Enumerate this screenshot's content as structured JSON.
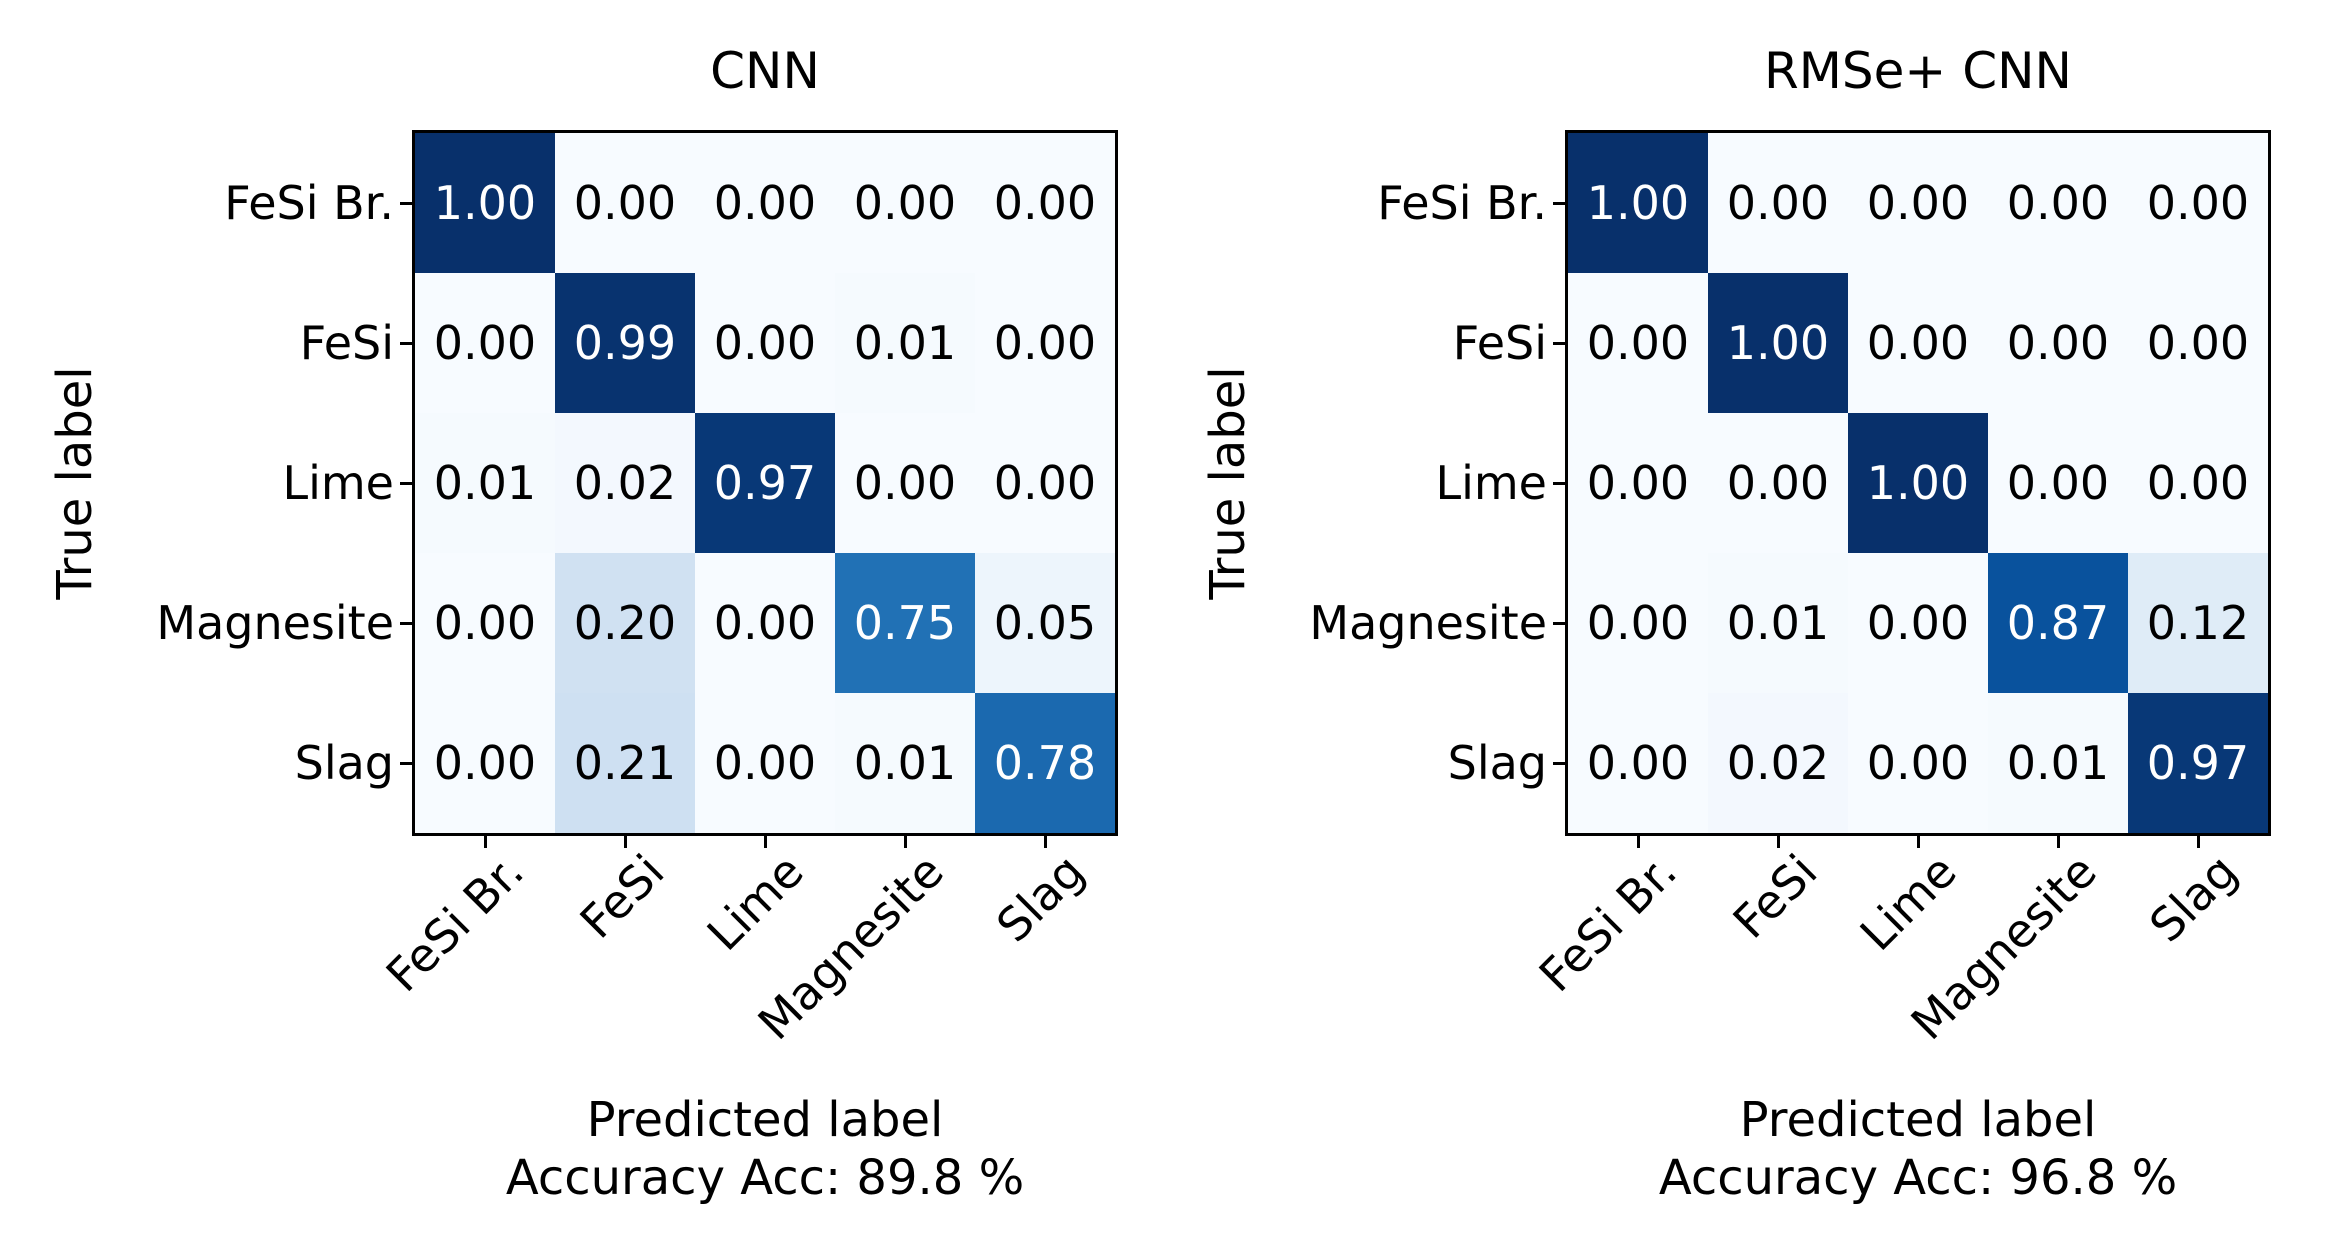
{
  "figure": {
    "background": "#ffffff",
    "text_color": "#000000",
    "cell_text_light": "#ffffff",
    "cell_text_dark": "#000000"
  },
  "colormap": {
    "name": "Blues",
    "anchors": [
      [
        0.0,
        "#f7fbff"
      ],
      [
        0.125,
        "#deebf7"
      ],
      [
        0.25,
        "#c6dbef"
      ],
      [
        0.375,
        "#9ecae1"
      ],
      [
        0.5,
        "#6baed6"
      ],
      [
        0.625,
        "#4292c6"
      ],
      [
        0.75,
        "#2171b5"
      ],
      [
        0.875,
        "#08519c"
      ],
      [
        1.0,
        "#08306b"
      ]
    ],
    "white_text_threshold": 0.5
  },
  "chart_data": [
    {
      "type": "heatmap",
      "title": "CNN",
      "xlabel": "Predicted label",
      "ylabel": "True label",
      "accuracy_value": 89.8,
      "accuracy_label": "Accuracy Acc: 89.8 %",
      "categories_x": [
        "FeSi Br.",
        "FeSi",
        "Lime",
        "Magnesite",
        "Slag"
      ],
      "categories_y": [
        "FeSi Br.",
        "FeSi",
        "Lime",
        "Magnesite",
        "Slag"
      ],
      "values": [
        [
          1.0,
          0.0,
          0.0,
          0.0,
          0.0
        ],
        [
          0.0,
          0.99,
          0.0,
          0.01,
          0.0
        ],
        [
          0.01,
          0.02,
          0.97,
          0.0,
          0.0
        ],
        [
          0.0,
          0.2,
          0.0,
          0.75,
          0.05
        ],
        [
          0.0,
          0.21,
          0.0,
          0.01,
          0.78
        ]
      ]
    },
    {
      "type": "heatmap",
      "title": "RMSe+ CNN",
      "xlabel": "Predicted label",
      "ylabel": "True label",
      "accuracy_value": 96.8,
      "accuracy_label": "Accuracy Acc: 96.8 %",
      "categories_x": [
        "FeSi Br.",
        "FeSi",
        "Lime",
        "Magnesite",
        "Slag"
      ],
      "categories_y": [
        "FeSi Br.",
        "FeSi",
        "Lime",
        "Magnesite",
        "Slag"
      ],
      "values": [
        [
          1.0,
          0.0,
          0.0,
          0.0,
          0.0
        ],
        [
          0.0,
          1.0,
          0.0,
          0.0,
          0.0
        ],
        [
          0.0,
          0.0,
          1.0,
          0.0,
          0.0
        ],
        [
          0.0,
          0.01,
          0.0,
          0.87,
          0.12
        ],
        [
          0.0,
          0.02,
          0.0,
          0.01,
          0.97
        ]
      ]
    }
  ]
}
